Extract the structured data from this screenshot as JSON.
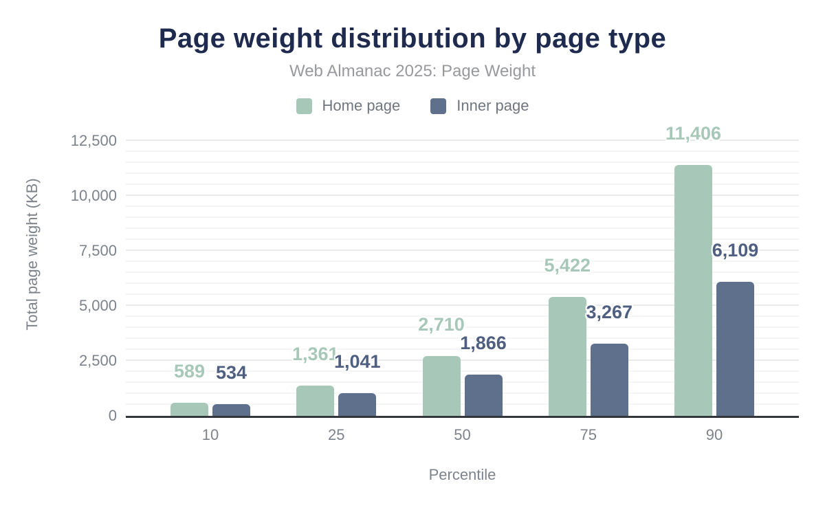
{
  "header": {
    "title": "Page weight distribution by page type",
    "subtitle": "Web Almanac 2025: Page Weight"
  },
  "colors": {
    "title": "#1e2b4e",
    "subtitle": "#97999c",
    "axis_text": "#7d838b",
    "legend_text": "#6f767f",
    "home_page": "#a7c8b8",
    "inner_page": "#5f708c",
    "inner_label": "#4f5f82",
    "major_gridline": "#e8eaec",
    "minor_gridline": "#f4f5f7",
    "axis_line": "#33363b"
  },
  "chart_data": {
    "type": "bar",
    "title": "Page weight distribution by page type",
    "subtitle": "Web Almanac 2025: Page Weight",
    "categories": [
      "10",
      "25",
      "50",
      "75",
      "90"
    ],
    "series": [
      {
        "name": "Home page",
        "values": [
          589,
          1361,
          2710,
          5422,
          11406
        ],
        "labels": [
          "589",
          "1,361",
          "2,710",
          "5,422",
          "11,406"
        ],
        "color": "#a7c8b8",
        "label_color": "#a7c8b8"
      },
      {
        "name": "Inner page",
        "values": [
          534,
          1041,
          1866,
          3267,
          6109
        ],
        "labels": [
          "534",
          "1,041",
          "1,866",
          "3,267",
          "6,109"
        ],
        "color": "#5f708c",
        "label_color": "#4f5f82"
      }
    ],
    "xlabel": "Percentile",
    "ylabel": "Total page weight (KB)",
    "ylim": [
      0,
      12500
    ],
    "yticks": [
      {
        "value": 0,
        "label": "0"
      },
      {
        "value": 2500,
        "label": "2,500"
      },
      {
        "value": 5000,
        "label": "5,000"
      },
      {
        "value": 7500,
        "label": "7,500"
      },
      {
        "value": 10000,
        "label": "10,000"
      },
      {
        "value": 12500,
        "label": "12,500"
      }
    ],
    "minor_grid_step": 500,
    "grid": true,
    "legend_position": "top"
  }
}
